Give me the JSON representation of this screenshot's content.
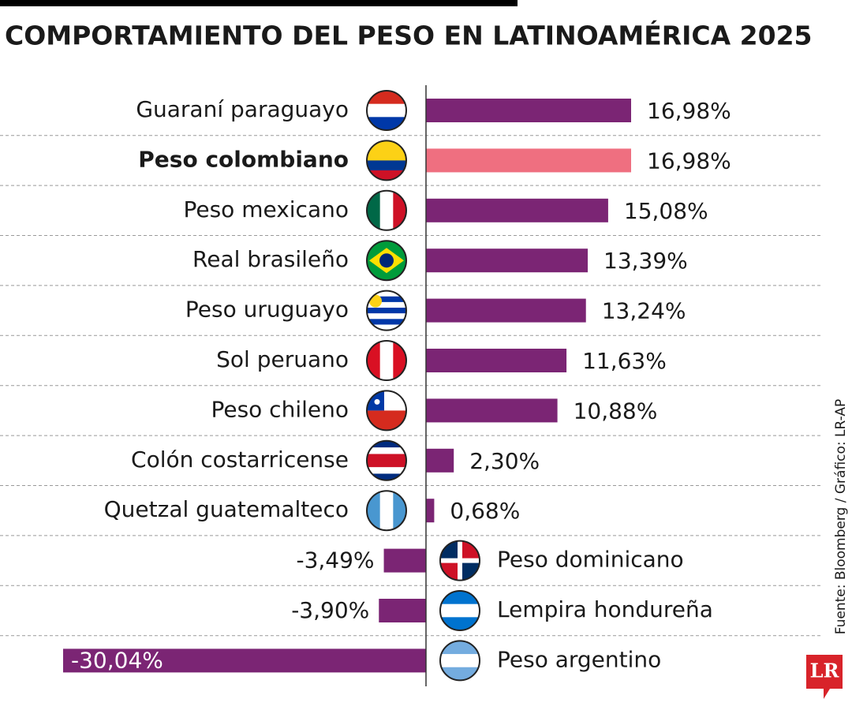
{
  "chart_data": {
    "type": "bar",
    "orientation": "horizontal",
    "title": "COMPORTAMIENTO DEL PESO EN LATINOAMÉRICA 2025",
    "categories": [
      "Guaraní paraguayo",
      "Peso colombiano",
      "Peso mexicano",
      "Real brasileño",
      "Peso uruguayo",
      "Sol peruano",
      "Peso chileno",
      "Colón costarricense",
      "Quetzal guatemalteco",
      "Peso dominicano",
      "Lempira hondureña",
      "Peso argentino"
    ],
    "values": [
      16.98,
      16.98,
      15.08,
      13.39,
      13.24,
      11.63,
      10.88,
      2.3,
      0.68,
      -3.49,
      -3.9,
      -30.04
    ],
    "value_labels": [
      "16,98%",
      "16,98%",
      "15,08%",
      "13,39%",
      "13,24%",
      "11,63%",
      "10,88%",
      "2,30%",
      "0,68%",
      "-3,49%",
      "-3,90%",
      "-30,04%"
    ],
    "colors": [
      "#7b2574",
      "#ef6f80",
      "#7b2574",
      "#7b2574",
      "#7b2574",
      "#7b2574",
      "#7b2574",
      "#7b2574",
      "#7b2574",
      "#7b2574",
      "#7b2574",
      "#7b2574"
    ],
    "xlim": [
      -30.04,
      16.98
    ],
    "source": "Fuente: Bloomberg / Gráfico: LR-AP",
    "logo": "LR"
  }
}
